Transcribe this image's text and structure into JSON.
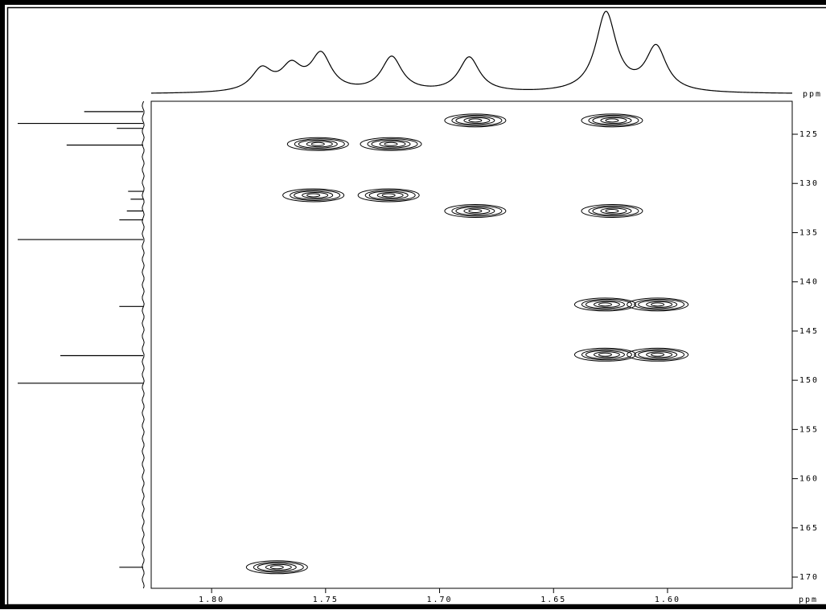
{
  "chart_data": {
    "type": "nmr2d",
    "x_unit": "ppm",
    "y_unit": "ppm",
    "xlim": [
      1.8265,
      1.5453
    ],
    "ylim": [
      121.65,
      171.14
    ],
    "xticks": [
      {
        "value": 1.8,
        "label": "1.80"
      },
      1.75,
      {
        "value": 1.7,
        "label": "1.70"
      },
      1.65,
      {
        "value": 1.6,
        "label": "1.60"
      }
    ],
    "yticks": [
      125,
      130,
      135,
      140,
      145,
      150,
      155,
      160,
      165,
      170
    ],
    "x": [
      1.684,
      1.624,
      1.753,
      1.721,
      1.755,
      1.722,
      1.684,
      1.624,
      1.627,
      1.604,
      1.627,
      1.604,
      1.771
    ],
    "values": [
      123.6,
      123.6,
      126.0,
      126.0,
      131.2,
      131.2,
      132.8,
      132.8,
      142.3,
      142.3,
      147.4,
      147.4,
      169.0
    ],
    "color": "#000000",
    "f2_trace": {
      "x": [
        1.778,
        1.765,
        1.752,
        1.721,
        1.687,
        1.627,
        1.605
      ],
      "values": [
        28,
        30,
        46,
        44,
        44,
        100,
        56
      ]
    },
    "f1_trace": {
      "y": [
        122.7,
        123.9,
        124.4,
        126.1,
        130.8,
        131.6,
        132.8,
        133.7,
        135.7,
        142.5,
        147.5,
        150.3,
        169.0
      ],
      "values": [
        47,
        100,
        21,
        61,
        12,
        10,
        13,
        19,
        100,
        19,
        66,
        100,
        19
      ]
    }
  }
}
